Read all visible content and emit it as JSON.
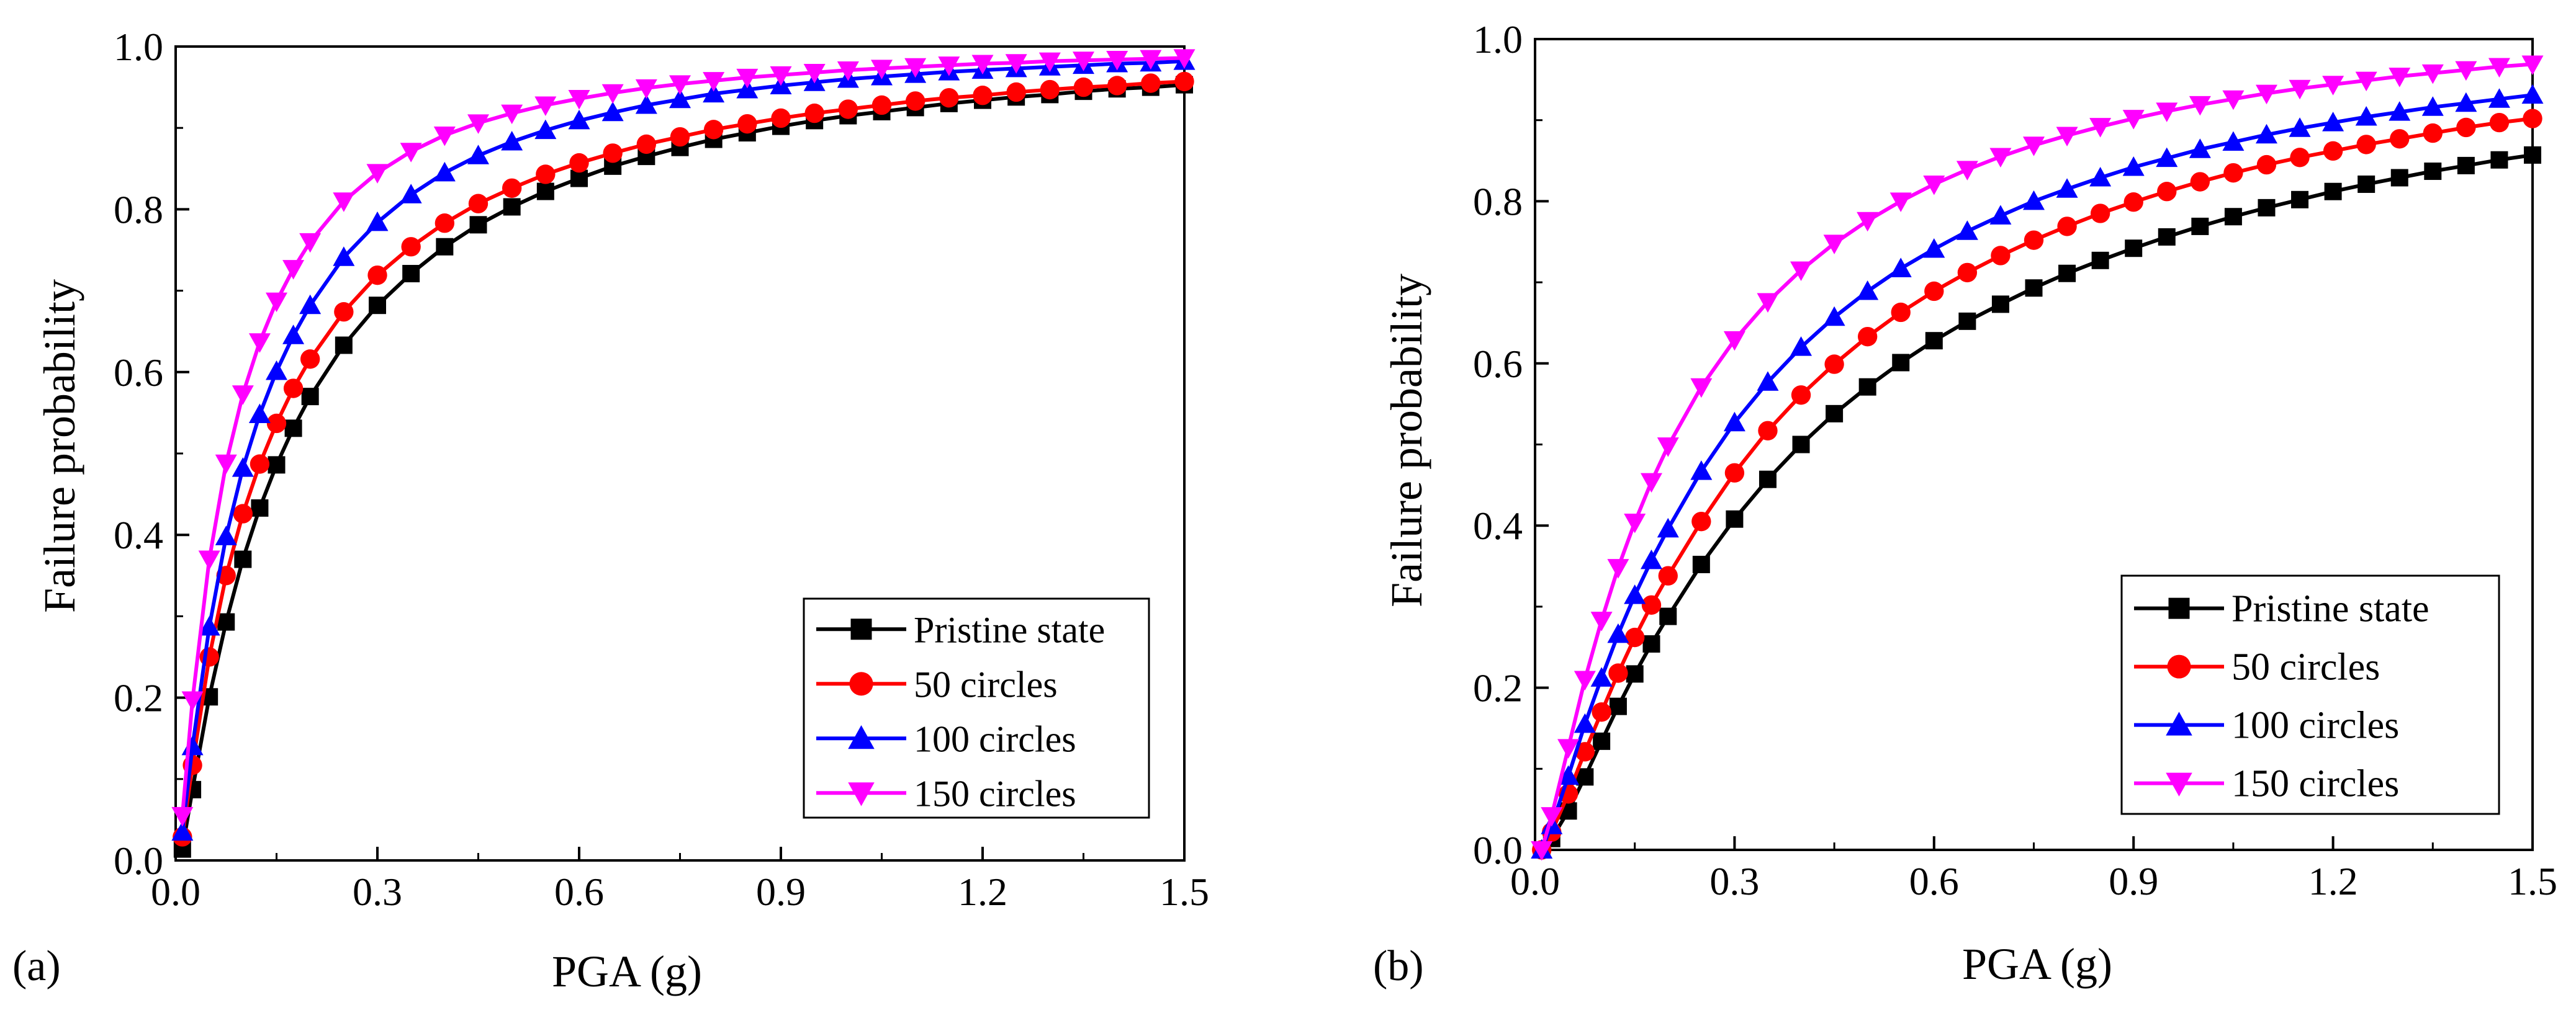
{
  "colors": {
    "pristine": "#000000",
    "c50": "#ff0000",
    "c100": "#0000ff",
    "c150": "#ff00ff"
  },
  "chart_data": [
    {
      "type": "line",
      "panel_label": "(a)",
      "xlabel": "PGA (g)",
      "ylabel": "Failure probability",
      "xlim": [
        0,
        1.5
      ],
      "ylim": [
        0,
        1.0
      ],
      "xticks": [
        "0.0",
        "0.3",
        "0.6",
        "0.9",
        "1.2",
        "1.5"
      ],
      "yticks": [
        "0.0",
        "0.2",
        "0.4",
        "0.6",
        "0.8",
        "1.0"
      ],
      "legend_position": "bottom-right",
      "x": [
        0.01,
        0.025,
        0.05,
        0.075,
        0.1,
        0.125,
        0.15,
        0.175,
        0.2,
        0.25,
        0.3,
        0.35,
        0.4,
        0.45,
        0.5,
        0.55,
        0.6,
        0.65,
        0.7,
        0.75,
        0.8,
        0.85,
        0.9,
        0.95,
        1.0,
        1.05,
        1.1,
        1.15,
        1.2,
        1.25,
        1.3,
        1.35,
        1.4,
        1.45,
        1.5
      ],
      "series": [
        {
          "name": "Pristine state",
          "marker": "square",
          "color_key": "pristine",
          "values": [
            0.014,
            0.087,
            0.201,
            0.293,
            0.37,
            0.433,
            0.486,
            0.531,
            0.57,
            0.633,
            0.682,
            0.721,
            0.754,
            0.781,
            0.803,
            0.822,
            0.838,
            0.853,
            0.865,
            0.876,
            0.886,
            0.894,
            0.902,
            0.909,
            0.915,
            0.92,
            0.925,
            0.93,
            0.934,
            0.938,
            0.941,
            0.945,
            0.948,
            0.95,
            0.953
          ]
        },
        {
          "name": "50 circles",
          "marker": "circle",
          "color_key": "c50",
          "values": [
            0.029,
            0.117,
            0.25,
            0.35,
            0.426,
            0.487,
            0.537,
            0.58,
            0.616,
            0.674,
            0.719,
            0.754,
            0.783,
            0.807,
            0.826,
            0.843,
            0.857,
            0.869,
            0.88,
            0.889,
            0.898,
            0.905,
            0.912,
            0.918,
            0.923,
            0.928,
            0.933,
            0.937,
            0.94,
            0.944,
            0.947,
            0.95,
            0.952,
            0.955,
            0.957
          ]
        },
        {
          "name": "100 circles",
          "marker": "triangle-up",
          "color_key": "c100",
          "values": [
            0.035,
            0.14,
            0.287,
            0.398,
            0.482,
            0.548,
            0.601,
            0.645,
            0.682,
            0.741,
            0.784,
            0.818,
            0.845,
            0.866,
            0.883,
            0.897,
            0.909,
            0.919,
            0.928,
            0.935,
            0.942,
            0.947,
            0.952,
            0.956,
            0.96,
            0.963,
            0.966,
            0.969,
            0.971,
            0.973,
            0.975,
            0.977,
            0.979,
            0.98,
            0.982
          ]
        },
        {
          "name": "150 circles",
          "marker": "triangle-down",
          "color_key": "c150",
          "values": [
            0.055,
            0.197,
            0.37,
            0.488,
            0.573,
            0.637,
            0.687,
            0.727,
            0.76,
            0.81,
            0.845,
            0.871,
            0.891,
            0.906,
            0.918,
            0.928,
            0.936,
            0.943,
            0.949,
            0.954,
            0.958,
            0.962,
            0.965,
            0.968,
            0.971,
            0.973,
            0.975,
            0.977,
            0.979,
            0.98,
            0.982,
            0.983,
            0.984,
            0.985,
            0.986
          ]
        }
      ]
    },
    {
      "type": "line",
      "panel_label": "(b)",
      "xlabel": "PGA (g)",
      "ylabel": "Failure probability",
      "xlim": [
        0,
        1.5
      ],
      "ylim": [
        0,
        1.0
      ],
      "xticks": [
        "0.0",
        "0.3",
        "0.6",
        "0.9",
        "1.2",
        "1.5"
      ],
      "yticks": [
        "0.0",
        "0.2",
        "0.4",
        "0.6",
        "0.8",
        "1.0"
      ],
      "legend_position": "bottom-right",
      "x": [
        0.01,
        0.025,
        0.05,
        0.075,
        0.1,
        0.125,
        0.15,
        0.175,
        0.2,
        0.25,
        0.3,
        0.35,
        0.4,
        0.45,
        0.5,
        0.55,
        0.6,
        0.65,
        0.7,
        0.75,
        0.8,
        0.85,
        0.9,
        0.95,
        1.0,
        1.05,
        1.1,
        1.15,
        1.2,
        1.25,
        1.3,
        1.35,
        1.4,
        1.45,
        1.5
      ],
      "series": [
        {
          "name": "Pristine state",
          "marker": "square",
          "color_key": "pristine",
          "values": [
            0.0,
            0.014,
            0.048,
            0.09,
            0.134,
            0.177,
            0.217,
            0.254,
            0.288,
            0.352,
            0.408,
            0.457,
            0.5,
            0.538,
            0.571,
            0.601,
            0.628,
            0.652,
            0.673,
            0.693,
            0.711,
            0.727,
            0.742,
            0.756,
            0.769,
            0.781,
            0.792,
            0.802,
            0.812,
            0.821,
            0.829,
            0.837,
            0.844,
            0.851,
            0.857
          ]
        },
        {
          "name": "50 circles",
          "marker": "circle",
          "color_key": "c50",
          "values": [
            0.0,
            0.022,
            0.069,
            0.121,
            0.17,
            0.218,
            0.262,
            0.302,
            0.338,
            0.405,
            0.465,
            0.517,
            0.561,
            0.599,
            0.633,
            0.663,
            0.689,
            0.712,
            0.733,
            0.752,
            0.769,
            0.785,
            0.799,
            0.812,
            0.824,
            0.835,
            0.845,
            0.854,
            0.862,
            0.87,
            0.877,
            0.884,
            0.891,
            0.897,
            0.902
          ]
        },
        {
          "name": "100 circles",
          "marker": "triangle-up",
          "color_key": "c100",
          "values": [
            0.0,
            0.03,
            0.091,
            0.155,
            0.212,
            0.266,
            0.314,
            0.357,
            0.396,
            0.467,
            0.527,
            0.577,
            0.62,
            0.657,
            0.689,
            0.717,
            0.741,
            0.763,
            0.782,
            0.8,
            0.815,
            0.829,
            0.842,
            0.853,
            0.864,
            0.873,
            0.882,
            0.89,
            0.897,
            0.904,
            0.91,
            0.916,
            0.921,
            0.926,
            0.931
          ]
        },
        {
          "name": "150 circles",
          "marker": "triangle-down",
          "color_key": "c150",
          "values": [
            0.0,
            0.042,
            0.126,
            0.21,
            0.283,
            0.348,
            0.404,
            0.454,
            0.498,
            0.571,
            0.629,
            0.676,
            0.715,
            0.748,
            0.776,
            0.8,
            0.821,
            0.839,
            0.855,
            0.869,
            0.881,
            0.892,
            0.902,
            0.911,
            0.919,
            0.926,
            0.933,
            0.939,
            0.944,
            0.949,
            0.954,
            0.958,
            0.962,
            0.966,
            0.969
          ]
        }
      ]
    }
  ]
}
